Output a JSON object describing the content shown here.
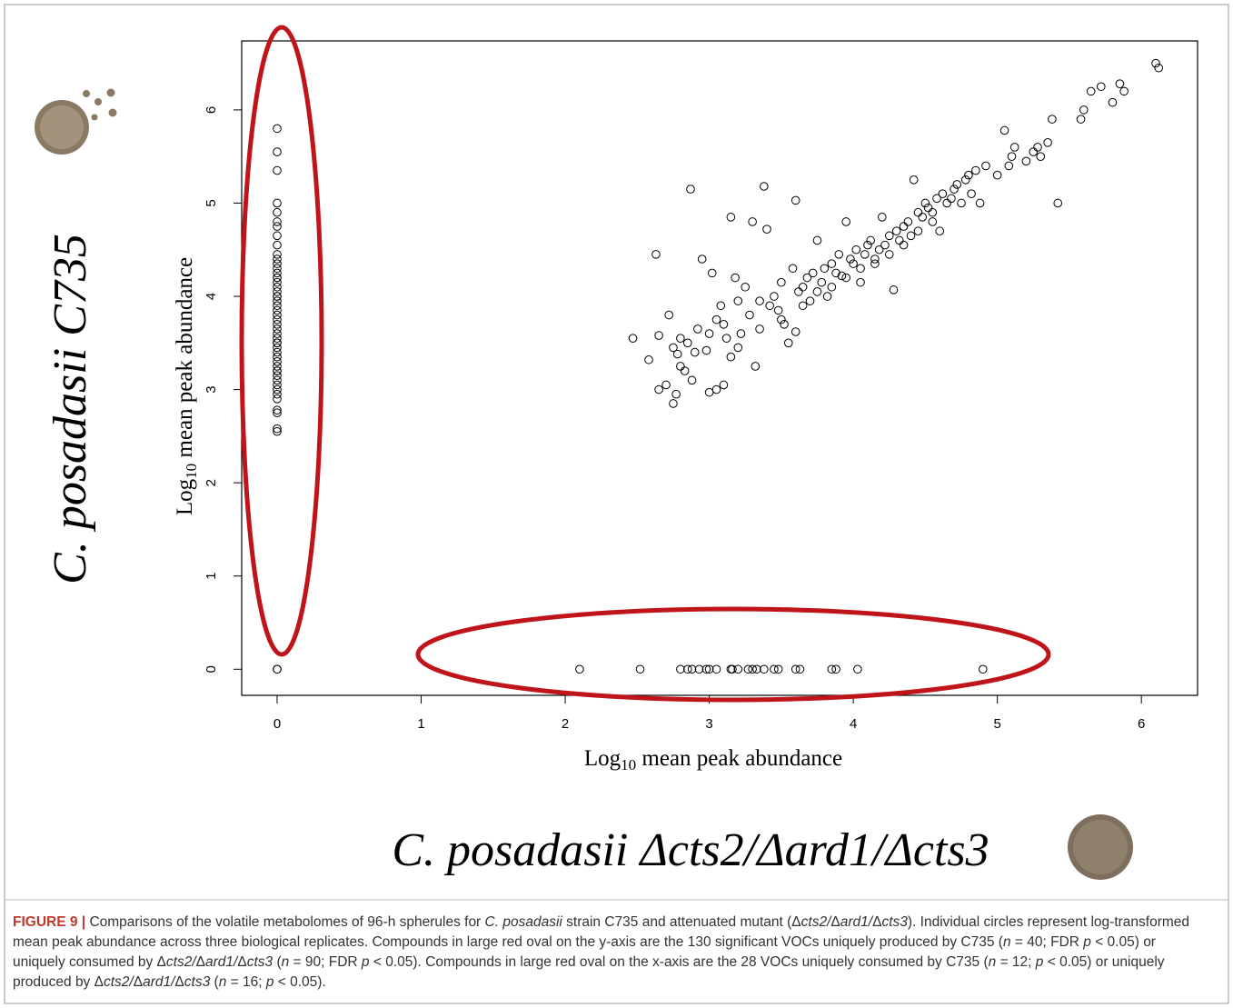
{
  "chart_data": {
    "type": "scatter",
    "x_label": {
      "base": "Log",
      "sub": "10",
      "rest": " mean peak abundance"
    },
    "y_label": {
      "base": "Log",
      "sub": "10",
      "rest": " mean peak abundance"
    },
    "xlim": [
      -0.246,
      6.39
    ],
    "ylim": [
      -0.28,
      6.74
    ],
    "xticks": [
      0,
      1,
      2,
      3,
      4,
      5,
      6
    ],
    "yticks": [
      0,
      1,
      2,
      3,
      4,
      5,
      6
    ],
    "color": "#000000",
    "x": [
      0,
      0,
      0,
      0,
      0,
      0,
      0,
      0,
      0,
      0,
      0,
      0,
      0,
      0,
      0,
      0,
      0,
      0,
      0,
      0,
      0,
      0,
      0,
      0,
      0,
      0,
      0,
      0,
      0,
      0,
      0,
      0,
      0,
      0,
      0,
      0,
      0,
      0,
      0,
      0,
      0,
      0,
      0,
      0,
      0,
      0,
      0,
      0,
      0,
      0,
      0,
      2.1,
      2.52,
      2.8,
      2.85,
      2.88,
      2.93,
      2.98,
      3.0,
      3.05,
      3.15,
      3.16,
      3.2,
      3.27,
      3.3,
      3.33,
      3.38,
      3.45,
      3.48,
      3.6,
      3.63,
      3.85,
      3.88,
      4.03,
      4.9,
      2.47,
      2.58,
      2.65,
      2.7,
      2.63,
      2.65,
      2.72,
      2.75,
      2.78,
      2.8,
      2.83,
      2.85,
      2.88,
      2.75,
      2.77,
      2.87,
      2.92,
      2.95,
      2.98,
      3.0,
      3.02,
      3.05,
      3.08,
      3.1,
      3.0,
      3.05,
      3.12,
      3.15,
      3.15,
      3.18,
      3.2,
      3.22,
      3.25,
      3.28,
      3.3,
      3.32,
      3.35,
      3.38,
      3.4,
      3.42,
      3.45,
      3.48,
      3.5,
      3.52,
      3.55,
      3.58,
      3.6,
      3.6,
      3.62,
      3.65,
      3.68,
      3.7,
      3.72,
      3.75,
      3.78,
      3.8,
      3.82,
      3.85,
      3.88,
      3.9,
      3.92,
      3.95,
      3.98,
      4.0,
      4.02,
      4.05,
      4.08,
      4.1,
      4.12,
      4.15,
      4.18,
      4.2,
      4.22,
      4.25,
      4.28,
      4.3,
      4.32,
      4.35,
      4.38,
      4.4,
      4.42,
      4.45,
      4.48,
      4.5,
      4.52,
      4.55,
      4.58,
      4.6,
      4.62,
      4.65,
      4.68,
      4.7,
      4.72,
      4.75,
      4.78,
      4.8,
      4.82,
      4.85,
      4.88,
      4.92,
      5.0,
      5.05,
      5.08,
      5.1,
      5.12,
      5.2,
      5.25,
      5.28,
      5.3,
      5.35,
      5.38,
      5.42,
      5.58,
      5.6,
      5.65,
      5.72,
      5.8,
      5.85,
      5.88,
      6.1,
      6.12,
      2.8,
      2.9,
      3.1,
      3.2,
      3.35,
      3.5,
      3.65,
      3.75,
      3.85,
      3.95,
      4.05,
      4.15,
      4.25,
      4.35,
      4.45,
      4.55
    ],
    "values": [
      5.8,
      5.55,
      5.35,
      5.0,
      4.9,
      4.8,
      4.75,
      4.65,
      4.55,
      4.45,
      4.4,
      4.35,
      4.3,
      4.25,
      4.2,
      4.15,
      4.1,
      4.05,
      4.0,
      3.95,
      3.9,
      3.85,
      3.8,
      3.75,
      3.7,
      3.65,
      3.6,
      3.55,
      3.5,
      3.45,
      3.4,
      3.35,
      3.3,
      3.25,
      3.2,
      3.15,
      3.1,
      3.05,
      3.0,
      2.95,
      2.9,
      2.78,
      2.75,
      2.58,
      2.55,
      4.0,
      3.5,
      3.2,
      4.2,
      0,
      0,
      0,
      0,
      0,
      0,
      0,
      0,
      0,
      0,
      0,
      0,
      0,
      0,
      0,
      0,
      0,
      0,
      0,
      0,
      0,
      0,
      0,
      0,
      0,
      0,
      3.55,
      3.32,
      3.0,
      3.05,
      4.45,
      3.58,
      3.8,
      3.45,
      3.38,
      3.25,
      3.2,
      3.5,
      3.1,
      2.85,
      2.95,
      5.15,
      3.65,
      4.4,
      3.42,
      3.6,
      4.25,
      3.75,
      3.9,
      3.05,
      2.97,
      3.0,
      3.55,
      4.85,
      3.35,
      4.2,
      3.95,
      3.6,
      4.1,
      3.8,
      4.8,
      3.25,
      3.65,
      5.18,
      4.72,
      3.9,
      4.0,
      3.85,
      4.15,
      3.7,
      3.5,
      4.3,
      5.03,
      3.62,
      4.05,
      4.1,
      4.2,
      3.95,
      4.25,
      4.6,
      4.15,
      4.3,
      4.0,
      4.35,
      4.25,
      4.45,
      4.22,
      4.8,
      4.4,
      4.35,
      4.5,
      4.15,
      4.45,
      4.55,
      4.6,
      4.4,
      4.5,
      4.85,
      4.55,
      4.65,
      4.07,
      4.7,
      4.6,
      4.75,
      4.8,
      4.65,
      5.25,
      4.9,
      4.85,
      5.0,
      4.95,
      4.8,
      5.05,
      4.7,
      5.1,
      5.0,
      5.05,
      5.15,
      5.2,
      5.0,
      5.25,
      5.3,
      5.1,
      5.35,
      5.0,
      5.4,
      5.3,
      5.78,
      5.4,
      5.5,
      5.6,
      5.45,
      5.55,
      5.6,
      5.5,
      5.65,
      5.9,
      5.0,
      5.9,
      6.0,
      6.2,
      6.25,
      6.08,
      6.28,
      6.2,
      6.5,
      6.45,
      3.55,
      3.4,
      3.7,
      3.45,
      3.95,
      3.75,
      3.9,
      4.05,
      4.1,
      4.2,
      4.3,
      4.35,
      4.45,
      4.55,
      4.7,
      4.9
    ]
  },
  "figure": {
    "left_label": "C. posadasii C735",
    "bottom_label": "C. posadasii Δcts2/Δard1/Δcts3",
    "caption_label": "FIGURE 9 |",
    "caption_parts": [
      " Comparisons of the volatile metabolomes of 96-h spherules for ",
      {
        "italic": "C. posadasii"
      },
      " strain C735 and attenuated mutant (Δ",
      {
        "italic": "cts2/"
      },
      "Δ",
      {
        "italic": "ard1/"
      },
      "Δ",
      {
        "italic": "cts3"
      },
      "). Individual circles represent log-transformed mean peak abundance across three biological replicates. Compounds in large red oval on the y-axis are the 130 significant VOCs uniquely produced by C735 (",
      {
        "italic": "n"
      },
      " = 40; FDR ",
      {
        "italic": "p"
      },
      " < 0.05) or uniquely consumed by Δ",
      {
        "italic": "cts2/"
      },
      "Δ",
      {
        "italic": "ard1/"
      },
      "Δ",
      {
        "italic": "cts3"
      },
      " (",
      {
        "italic": "n"
      },
      " = 90; FDR ",
      {
        "italic": "p"
      },
      " < 0.05). Compounds in large red oval on the x-axis are the 28 VOCs uniquely consumed by C735 (",
      {
        "italic": "n"
      },
      " = 12; ",
      {
        "italic": "p"
      },
      " < 0.05) or uniquely produced by Δ",
      {
        "italic": "cts2/"
      },
      "Δ",
      {
        "italic": "ard1/"
      },
      "Δ",
      {
        "italic": "cts3"
      },
      " (",
      {
        "italic": "n"
      },
      " = 16; ",
      {
        "italic": "p"
      },
      " < 0.05)."
    ]
  }
}
